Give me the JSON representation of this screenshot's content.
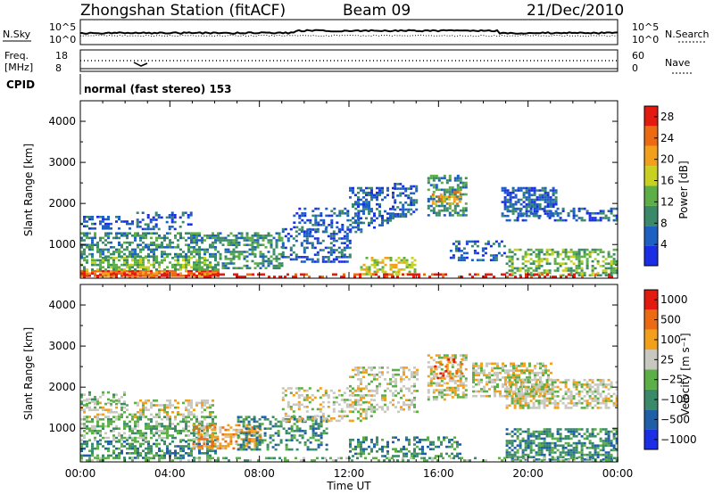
{
  "header": {
    "station": "Zhongshan Station (fitACF)",
    "beam": "Beam 09",
    "date": "21/Dec/2010"
  },
  "panels": {
    "nsky_label": "N.Sky",
    "nsearch_label": "N.Search",
    "freq_label_line1": "Freq.",
    "freq_label_line2": "[MHz]",
    "nave_label": "Nave",
    "cpid_label": "CPID",
    "cpid_text": "normal (fast stereo) 153",
    "noise_ticks_left": [
      "10^5",
      "10^0"
    ],
    "noise_ticks_right": [
      "10^5",
      "10^0"
    ],
    "freq_ticks": [
      "18",
      "8"
    ],
    "nave_ticks": [
      "60",
      "0"
    ]
  },
  "chart_data": [
    {
      "type": "heatmap",
      "name": "power",
      "ylabel": "Slant Range [km]",
      "xlabel": "",
      "x_ticks": [
        "00:00",
        "04:00",
        "08:00",
        "12:00",
        "16:00",
        "20:00",
        "00:00"
      ],
      "x_range_hours": [
        0,
        24
      ],
      "y_ticks": [
        1000,
        2000,
        3000,
        4000
      ],
      "ylim": [
        180,
        4500
      ],
      "colorbar": {
        "label": "Power [dB]",
        "ticks": [
          4,
          8,
          12,
          16,
          20,
          24,
          28
        ],
        "range": [
          0,
          30
        ],
        "colors": [
          "#1a2ee6",
          "#1e5fc2",
          "#3a8a6a",
          "#5cae46",
          "#c8d020",
          "#f2a01c",
          "#ec6a12",
          "#e21a10"
        ]
      },
      "blobs": [
        {
          "t0": 0.0,
          "t1": 6.2,
          "r0": 250,
          "r1": 380,
          "c": 6,
          "d": 0.85
        },
        {
          "t0": 0.0,
          "t1": 6.2,
          "r0": 380,
          "r1": 700,
          "c": 3,
          "d": 0.6
        },
        {
          "t0": 0.0,
          "t1": 6.2,
          "r0": 700,
          "r1": 1300,
          "c": 2,
          "d": 0.55
        },
        {
          "t0": 0.0,
          "t1": 2.3,
          "r0": 1400,
          "r1": 1700,
          "c": 1,
          "d": 0.5
        },
        {
          "t0": 2.5,
          "t1": 5.0,
          "r0": 1400,
          "r1": 1800,
          "c": 1,
          "d": 0.35
        },
        {
          "t0": 6.2,
          "t1": 9.0,
          "r0": 400,
          "r1": 1300,
          "c": 2,
          "d": 0.55
        },
        {
          "t0": 9.0,
          "t1": 12.0,
          "r0": 600,
          "r1": 1400,
          "c": 1,
          "d": 0.4
        },
        {
          "t0": 9.5,
          "t1": 12.5,
          "r0": 1300,
          "r1": 1900,
          "c": 1,
          "d": 0.35
        },
        {
          "t0": 12.0,
          "t1": 14.0,
          "r0": 1400,
          "r1": 2400,
          "c": 1,
          "d": 0.4
        },
        {
          "t0": 12.5,
          "t1": 15.0,
          "r0": 300,
          "r1": 700,
          "c": 4,
          "d": 0.45
        },
        {
          "t0": 14.0,
          "t1": 15.0,
          "r0": 1700,
          "r1": 2500,
          "c": 1,
          "d": 0.45
        },
        {
          "t0": 15.5,
          "t1": 17.2,
          "r0": 1700,
          "r1": 2700,
          "c": 2,
          "d": 0.55
        },
        {
          "t0": 15.7,
          "t1": 17.0,
          "r0": 2000,
          "r1": 2300,
          "c": 5,
          "d": 0.45
        },
        {
          "t0": 16.5,
          "t1": 19.0,
          "r0": 600,
          "r1": 1100,
          "c": 1,
          "d": 0.35
        },
        {
          "t0": 18.8,
          "t1": 21.2,
          "r0": 1700,
          "r1": 2400,
          "c": 1,
          "d": 0.6
        },
        {
          "t0": 19.0,
          "t1": 24.0,
          "r0": 1600,
          "r1": 1900,
          "c": 1,
          "d": 0.35
        },
        {
          "t0": 19.0,
          "t1": 24.0,
          "r0": 250,
          "r1": 900,
          "c": 3,
          "d": 0.5
        },
        {
          "t0": 0.0,
          "t1": 24.0,
          "r0": 200,
          "r1": 300,
          "c": 7,
          "d": 0.35
        }
      ]
    },
    {
      "type": "heatmap",
      "name": "velocity",
      "ylabel": "Slant Range [km]",
      "xlabel": "Time UT",
      "x_ticks": [
        "00:00",
        "04:00",
        "08:00",
        "12:00",
        "16:00",
        "20:00",
        "00:00"
      ],
      "x_range_hours": [
        0,
        24
      ],
      "y_ticks": [
        1000,
        2000,
        3000,
        4000
      ],
      "ylim": [
        180,
        4500
      ],
      "colorbar": {
        "label": "Velocity [m s⁻¹]",
        "ticks": [
          "1000",
          "500",
          "100",
          "25",
          "−25",
          "−100",
          "−500",
          "−1000"
        ],
        "colors": [
          "#1a2ee6",
          "#1e5fa8",
          "#3a8a6a",
          "#5cae46",
          "#c8c8c0",
          "#f2a01c",
          "#ec6a12",
          "#e21a10"
        ]
      },
      "blobs": [
        {
          "t0": 0.0,
          "t1": 6.0,
          "r0": 250,
          "r1": 700,
          "c": 2,
          "d": 0.55
        },
        {
          "t0": 0.0,
          "t1": 6.0,
          "r0": 700,
          "r1": 1300,
          "c": 3,
          "d": 0.5
        },
        {
          "t0": 0.0,
          "t1": 6.0,
          "r0": 1300,
          "r1": 1700,
          "c": 4,
          "d": 0.45
        },
        {
          "t0": 0.0,
          "t1": 2.0,
          "r0": 1600,
          "r1": 1900,
          "c": 3,
          "d": 0.35
        },
        {
          "t0": 5.0,
          "t1": 8.0,
          "r0": 500,
          "r1": 1100,
          "c": 5,
          "d": 0.5
        },
        {
          "t0": 7.0,
          "t1": 11.0,
          "r0": 500,
          "r1": 1300,
          "c": 2,
          "d": 0.4
        },
        {
          "t0": 9.0,
          "t1": 13.0,
          "r0": 1200,
          "r1": 2000,
          "c": 4,
          "d": 0.3
        },
        {
          "t0": 12.0,
          "t1": 15.0,
          "r0": 1400,
          "r1": 2500,
          "c": 4,
          "d": 0.4
        },
        {
          "t0": 12.0,
          "t1": 17.0,
          "r0": 300,
          "r1": 800,
          "c": 2,
          "d": 0.4
        },
        {
          "t0": 15.5,
          "t1": 17.2,
          "r0": 1700,
          "r1": 2800,
          "c": 4,
          "d": 0.55
        },
        {
          "t0": 15.8,
          "t1": 17.0,
          "r0": 2200,
          "r1": 2700,
          "c": 6,
          "d": 0.3
        },
        {
          "t0": 17.5,
          "t1": 21.0,
          "r0": 1800,
          "r1": 2600,
          "c": 4,
          "d": 0.6
        },
        {
          "t0": 19.0,
          "t1": 24.0,
          "r0": 1500,
          "r1": 2200,
          "c": 4,
          "d": 0.55
        },
        {
          "t0": 19.0,
          "t1": 24.0,
          "r0": 250,
          "r1": 1000,
          "c": 2,
          "d": 0.6
        },
        {
          "t0": 0.0,
          "t1": 24.0,
          "r0": 200,
          "r1": 300,
          "c": 3,
          "d": 0.3
        }
      ]
    }
  ]
}
